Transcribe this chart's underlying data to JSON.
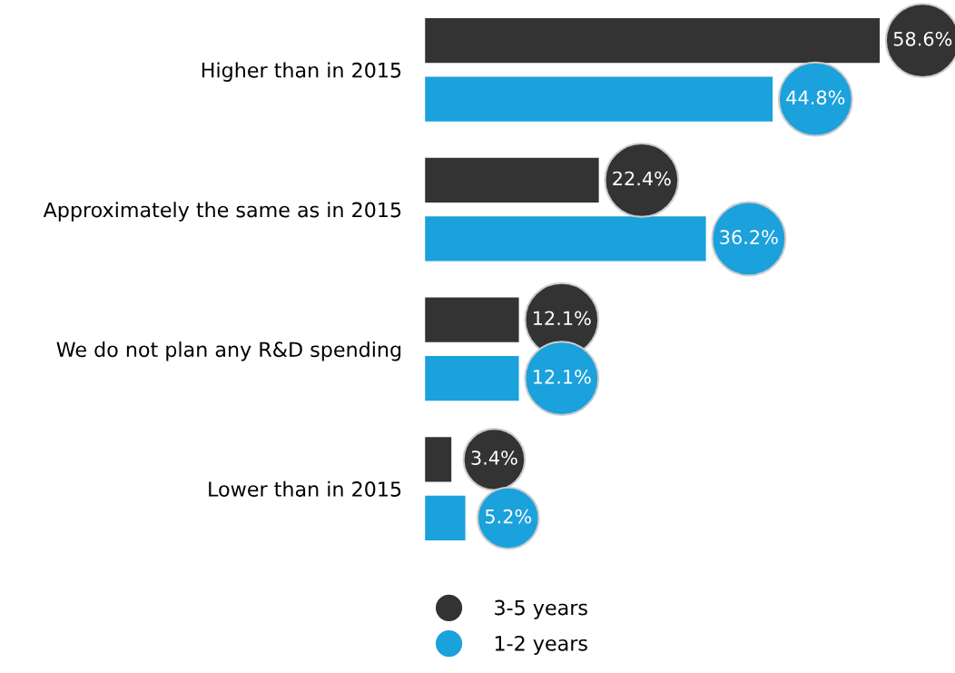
{
  "chart_data": {
    "type": "bar",
    "orientation": "horizontal",
    "categories": [
      "Higher than in 2015",
      "Approximately the same as in 2015",
      "We do not plan any R&D spending",
      "Lower than in 2015"
    ],
    "series": [
      {
        "name": "3-5 years",
        "color": "#333333",
        "values": [
          58.6,
          22.4,
          12.1,
          3.4
        ],
        "value_labels": [
          "58.6%",
          "22.4%",
          "12.1%",
          "3.4%"
        ]
      },
      {
        "name": "1-2 years",
        "color": "#1ba1dc",
        "values": [
          44.8,
          36.2,
          12.1,
          5.2
        ],
        "value_labels": [
          "44.8%",
          "36.2%",
          "12.1%",
          "5.2%"
        ]
      }
    ],
    "tick_labels": "y",
    "grid": false,
    "legend": "bottom left",
    "marker": "circle"
  }
}
